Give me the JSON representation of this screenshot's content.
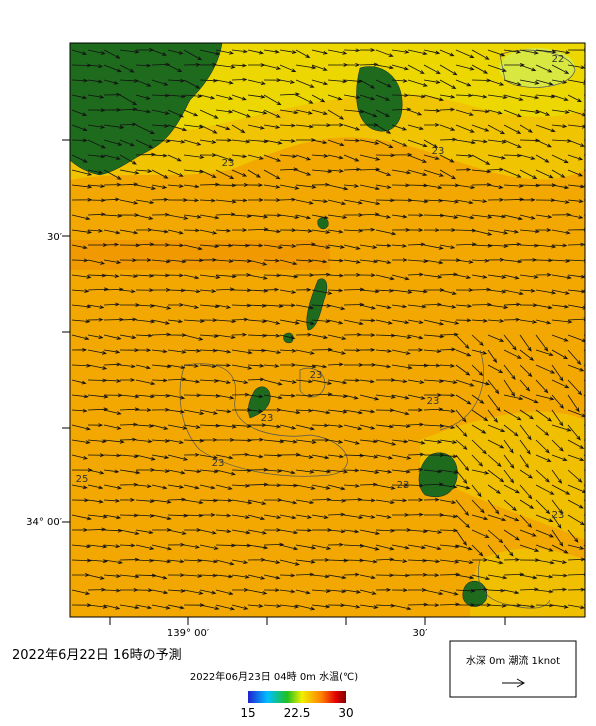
{
  "header": {
    "title": "2022年6月22日  16時の予測"
  },
  "map": {
    "lat_labels": [
      "30′",
      "34° 00′"
    ],
    "lon_labels": [
      "139° 00′",
      "30′"
    ],
    "contour_labels": [
      "22",
      "23",
      "23",
      "23",
      "23",
      "23",
      "23",
      "23",
      "23",
      "25"
    ]
  },
  "colorbar": {
    "caption": "2022年06月23日 04時 0m 水温(℃)",
    "lim": [
      15,
      30
    ],
    "ticks": [
      15,
      22.5,
      30
    ]
  },
  "legend": {
    "text": "水深 0m 潮流 1knot"
  }
}
